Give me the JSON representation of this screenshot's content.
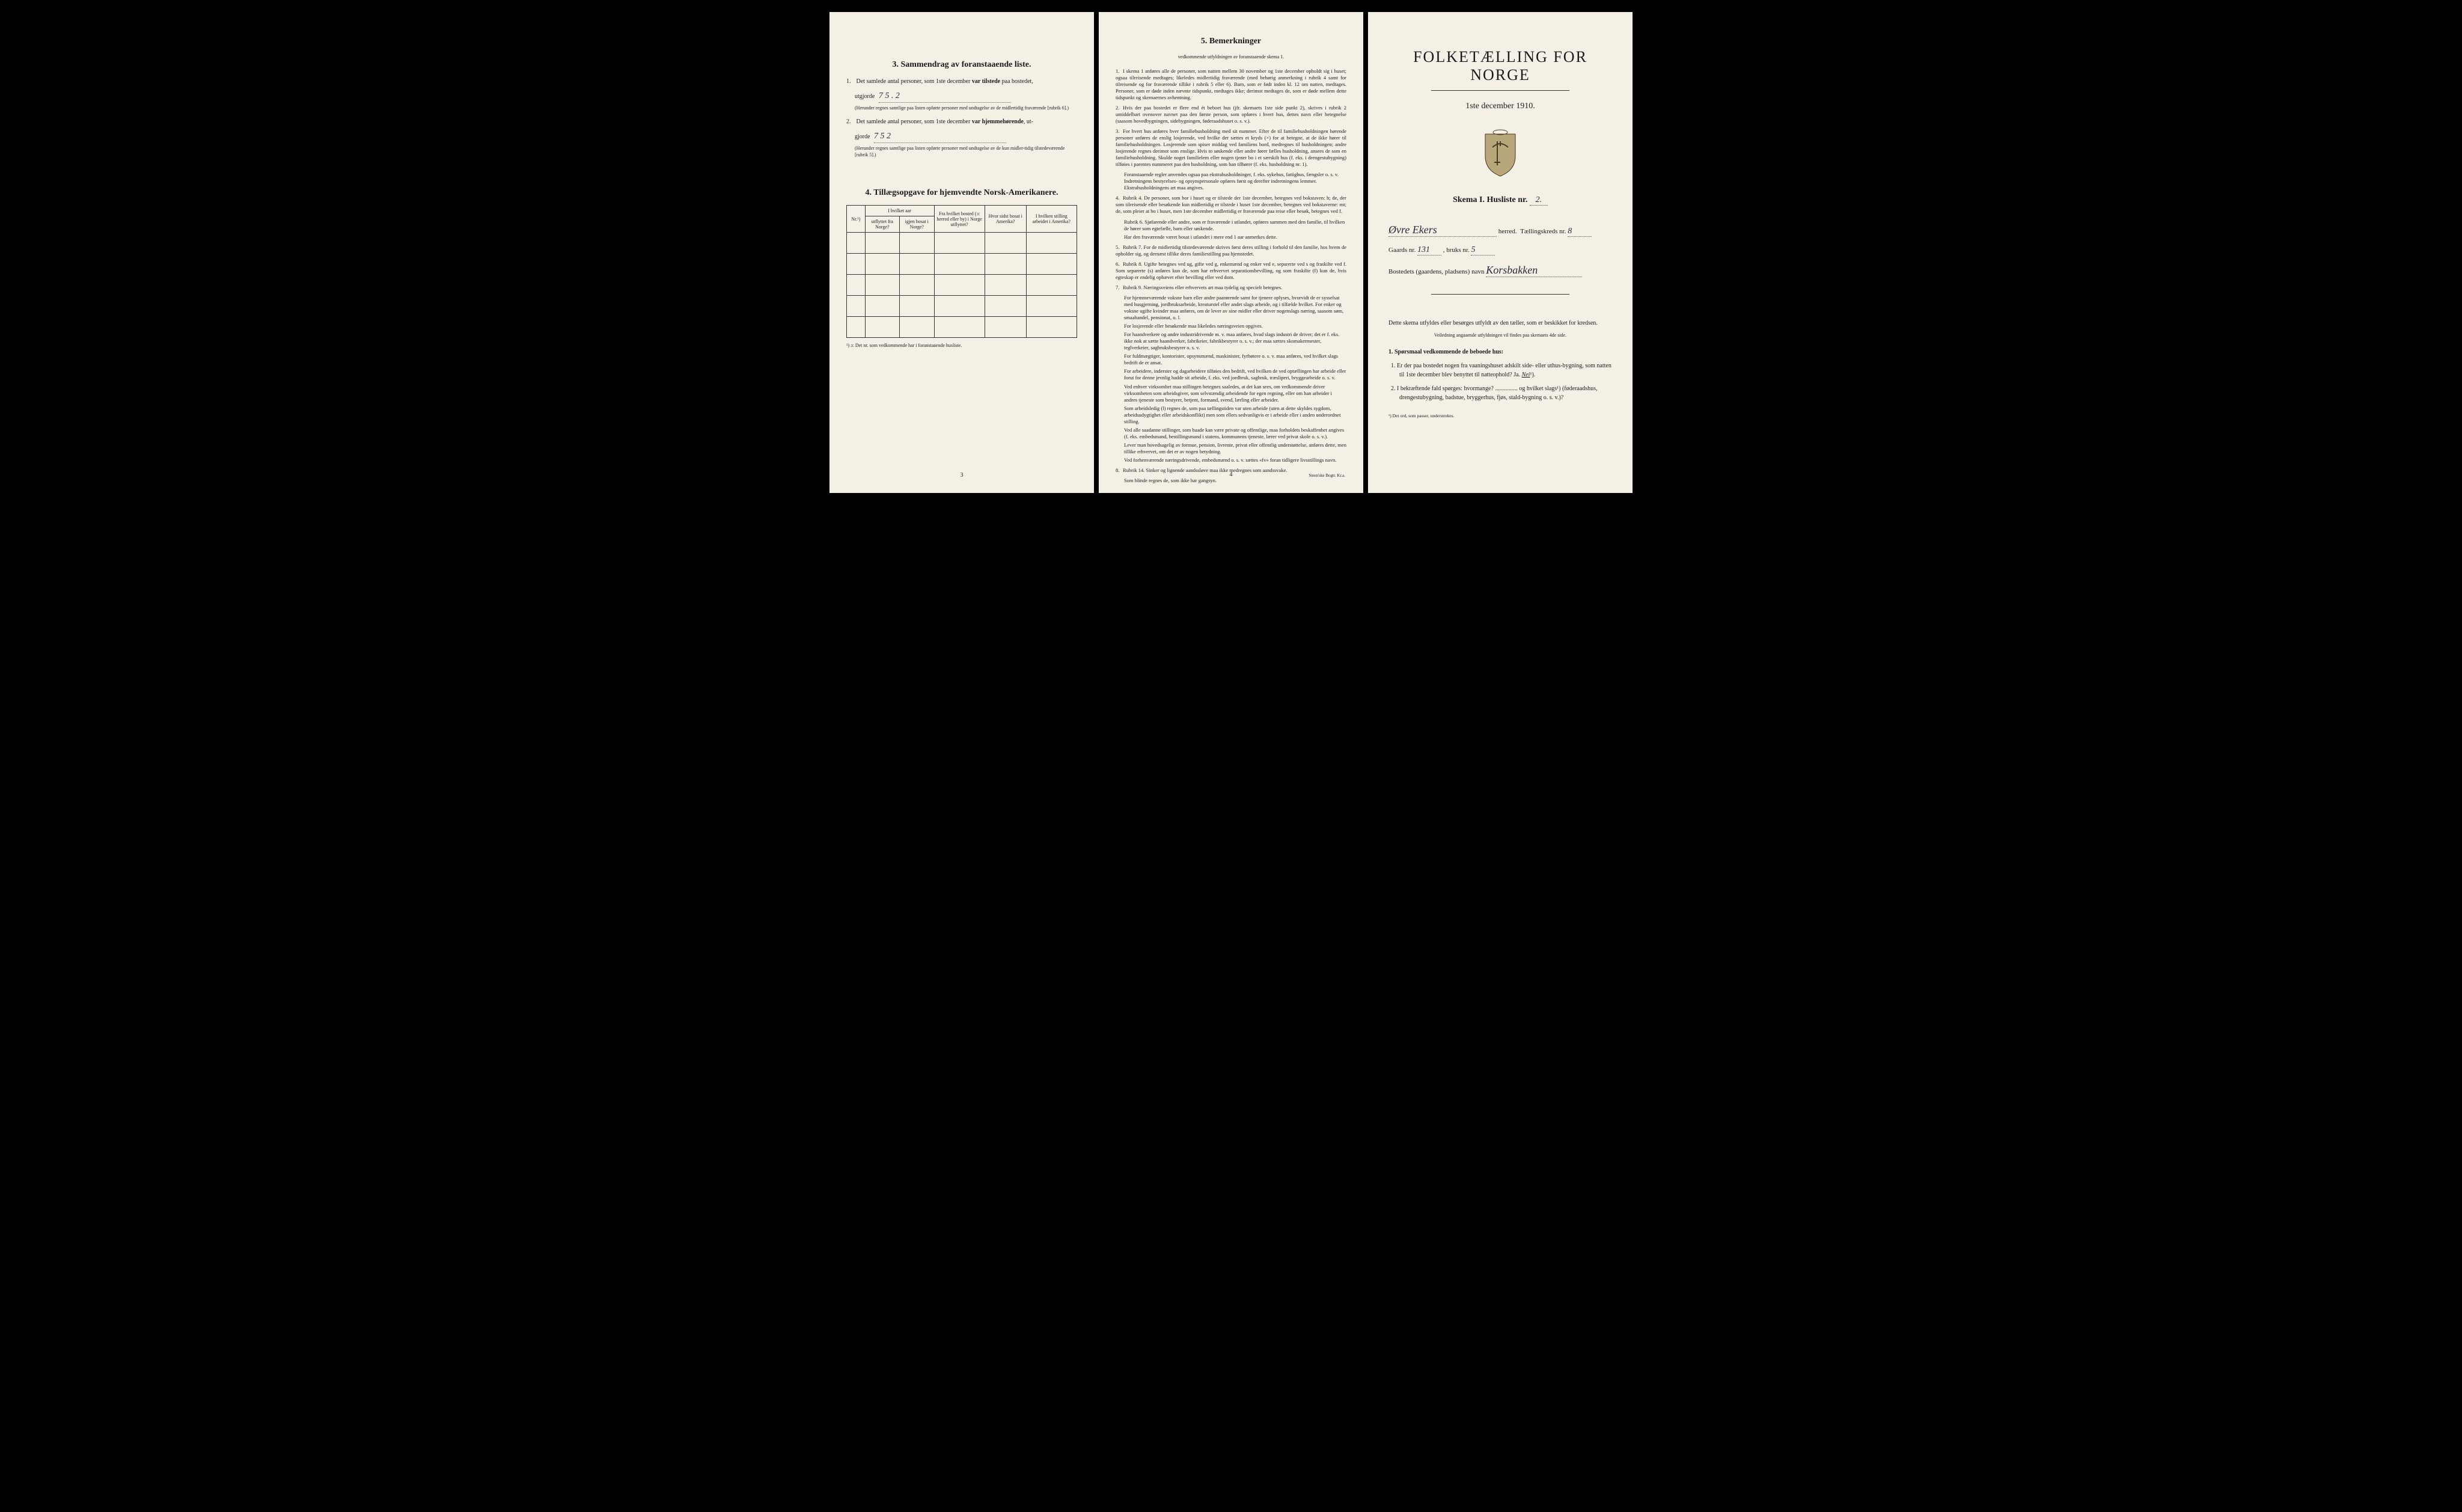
{
  "page1": {
    "section3_heading": "3.  Sammendrag av foranstaaende liste.",
    "item1_pre": "Det samlede antal personer, som 1ste december ",
    "item1_bold": "var tilstede",
    "item1_post": " paa bostedet,",
    "item1_utgjorde": "utgjorde",
    "item1_value": "7       5 . 2",
    "item1_note": "(Herunder regnes samtlige paa listen opførte personer med undtagelse av de midlertidig fraværende [rubrik 6].)",
    "item2_pre": "Det samlede antal personer, som 1ste december ",
    "item2_bold": "var hjemmehørende",
    "item2_post": ", ut-",
    "item2_gjorde": "gjorde",
    "item2_value": "7       5   2",
    "item2_note": "(Herunder regnes samtlige paa listen opførte personer med undtagelse av de kun midler-tidig tilstedeværende [rubrik 5].)",
    "section4_heading": "4.  Tillægsopgave for hjemvendte Norsk-Amerikanere.",
    "table": {
      "col_nr": "Nr.¹)",
      "col_hvilket_aar": "I hvilket aar",
      "col_utflyttet": "utflyttet fra Norge?",
      "col_igjen": "igjen bosat i Norge?",
      "col_fra_bosted": "Fra hvilket bosted (ɔ: herred eller by) i Norge utflyttet?",
      "col_hvor_sidst": "Hvor sidst bosat i Amerika?",
      "col_stilling": "I hvilken stilling arbeidet i Amerika?",
      "row_count": 5
    },
    "table_footnote": "¹) ɔ: Det nr. som vedkommende har i foranstaaende husliste.",
    "page_num": "3"
  },
  "page2": {
    "heading": "5.  Bemerkninger",
    "subheading": "vedkommende utfyldningen av foranstaaende skema 1.",
    "remarks": [
      {
        "num": "1.",
        "text": "I skema 1 anføres alle de personer, som natten mellem 30 november og 1ste december opholdt sig i huset; ogsaa tilreisende medtages; likeledes midlertidig fraværende (med behørig anmerkning i rubrik 4 samt for tilreisende og for fraværende tillike i rubrik 5 eller 6). Barn, som er født inden kl. 12 om natten, medtages. Personer, som er døde inden nævnte tidspunkt, medtages ikke; derimot medtages de, som er døde mellem dette tidspunkt og skemaernes avhentning."
      },
      {
        "num": "2.",
        "text": "Hvis der paa bostedet er flere end ét beboet hus (jfr. skemaets 1ste side punkt 2), skrives i rubrik 2 umiddelbart ovenover navnet paa den første person, som opføres i hvert hus, dettes navn eller betegnelse (saasom hovedbygningen, sidebygningen, føderaadshuset o. s. v.)."
      },
      {
        "num": "3.",
        "text": "For hvert hus anføres hver familiehusholdning med sit nummer. Efter de til familiehusholdningen hørende personer anføres de enslig losjerende, ved hvilke der sættes et kryds (×) for at betegne, at de ikke hører til familiehusholdningen. Losjerende som spiser middag ved familiens bord, medregnes til husholdningen; andre losjerende regnes derimot som enslige. Hvis to søskende eller andre fører fælles husholdning, ansees de som en familiehusholdning. Skulde noget familielem eller nogen tjener bo i et særskilt hus (f. eks. i drengestubygning) tilføies i parentes nummeret paa den husholdning, som han tilhører (f. eks. husholdning nr. 1).",
        "paras": [
          "Foranstaaende regler anvendes ogsaa paa ekstrahusholdninger, f. eks. sykehus, fattighus, fængsler o. s. v. Indretningens bestyrelses- og opsynspersonale opføres først og derefter indretningens lemmer. Ekstrahusholdningens art maa angives."
        ]
      },
      {
        "num": "4.",
        "text": "Rubrik 4. De personer, som bor i huset og er tilstede der 1ste december, betegnes ved bokstaven: b; de, der som tilreisende eller besøkende kun midlertidig er tilstede i huset 1ste december, betegnes ved bokstaverne: mt; de, som pleier at bo i huset, men 1ste december midlertidig er fraværende paa reise eller besøk, betegnes ved f.",
        "paras": [
          "Rubrik 6. Sjøfarende eller andre, som er fraværende i utlandet, opføres sammen med den familie, til hvilken de hører som egtefælle, barn eller søskende.",
          "Har den fraværende været bosat i utlandet i mere end 1 aar anmerkes dette."
        ]
      },
      {
        "num": "5.",
        "text": "Rubrik 7. For de midlertidig tilstedeværende skrives først deres stilling i forhold til den familie, hos hvem de opholder sig, og dernæst tillike deres familiestilling paa hjemstedet."
      },
      {
        "num": "6.",
        "text": "Rubrik 8. Ugifte betegnes ved ug, gifte ved g, enkemænd og enker ved e, separerte ved s og fraskilte ved f. Som separerte (s) anføres kun de, som har erhvervet separationsbevilling, og som fraskilte (f) kun de, hvis egteskap er endelig ophævet efter bevilling eller ved dom."
      },
      {
        "num": "7.",
        "text": "Rubrik 9. Næringsveiens eller erhvervets art maa tydelig og specielt betegnes.",
        "paras": [
          "For hjemmeværende voksne barn eller andre paarørende samt for tjenere oplyses, hvorvidt de er sysselsat med husgjerning, jordbruksarbeide, kreaturstel eller andet slags arbeide, og i tilfælde hvilket. For enker og voksne ugifte kvinder maa anføres, om de lever av sine midler eller driver nogenslags næring, saasom søm, smaahandel, pensionat, o. l.",
          "For losjerende eller besøkende maa likeledes næringsveien opgives.",
          "For haandverkere og andre industridrivende m. v. maa anføres, hvad slags industri de driver; det er f. eks. ikke nok at sætte haandverker, fabrikeier, fabrikbestyrer o. s. v.; der maa sættes skomakermester, teglverkeier, sagbruksbestyrer o. s. v.",
          "For fuldmægtiger, kontorister, opsynsmænd, maskinister, fyrbøtere o. s. v. maa anføres, ved hvilket slags bedrift de er ansat.",
          "For arbeidere, inderster og dagarbeidere tilføies den bedrift, ved hvilken de ved optællingen har arbeide eller forut for denne jevnlig hadde sit arbeide, f. eks. ved jordbruk, sagbruk, træsliperi, bryggearbeide o. s. v.",
          "Ved enhver virksomhet maa stillingen betegnes saaledes, at det kan sees, om vedkommende driver virksomheten som arbeidsgiver, som selvstændig arbeidende for egen regning, eller om han arbeider i andres tjeneste som bestyrer, betjent, formand, svend, lærling eller arbeider.",
          "Som arbeidsledig (l) regnes de, som paa tællingstiden var uten arbeide (uten at dette skyldes sygdom, arbeidsudygtighet eller arbeidskonflikt) men som ellers sedvanligvis er i arbeide eller i anden underordnet stilling.",
          "Ved alle saadanne stillinger, som baade kan være private og offentlige, maa forholdets beskaffenhet angives (f. eks. embedsmand, bestillingsmand i statens, kommunens tjeneste, lærer ved privat skole o. s. v.).",
          "Lever man hovedsagelig av formue, pension, livrente, privat eller offentlig understøttelse, anføres dette, men tillike erhvervet, om det er av nogen betydning.",
          "Ved forhenværende næringsdrivende, embedsmænd o. s. v. sættes «fv» foran tidligere livsstillings navn."
        ]
      },
      {
        "num": "8.",
        "text": "Rubrik 14. Sinker og lignende aandssløve maa ikke medregnes som aandssvake.",
        "paras": [
          "Som blinde regnes de, som ikke har gangsyn."
        ]
      }
    ],
    "page_num": "4",
    "printer": "Steen'ske Bogtr. Kr.a."
  },
  "page3": {
    "main_title": "FOLKETÆLLING FOR NORGE",
    "subtitle": "1ste december 1910.",
    "skema_label": "Skema I.   Husliste nr.",
    "husliste_nr": "2.",
    "herred_value": "Øvre Ekers",
    "herred_label": "herred.",
    "taellingskreds_label": "Tællingskreds nr.",
    "taellingskreds_nr": "8",
    "gaards_label": "Gaards nr.",
    "gaards_nr": "131",
    "bruks_label": ", bruks nr.",
    "bruks_nr": "5",
    "bosted_label": "Bostedets (gaardens, pladsens) navn",
    "bosted_value": "Korsbakken",
    "instruction_lead": "Dette skema utfyldes eller besørges utfyldt av den tæller, som er beskikket for kredsen.",
    "instruction_small": "Veiledning angaaende utfyldningen vil findes paa skemaets 4de side.",
    "q_heading": "1. Spørsmaal vedkommende de beboede hus:",
    "q1": "1. Er der paa bostedet nogen fra vaaningshuset adskilt side- eller uthus-bygning, som natten til 1ste december blev benyttet til natteophold?   Ja.   ",
    "q1_answer": "Nei",
    "q1_sup": "¹).",
    "q2": "2. I bekræftende fald spørges: hvormange? ............... og hvilket slags¹) (føderaadshus, drengestubygning, badstue, bryggerhus, fjøs, stald-bygning o. s. v.)?",
    "footnote": "¹) Det ord, som passer, understrekes."
  },
  "colors": {
    "paper": "#f5f0e6",
    "ink": "#1a1a1a",
    "handwriting": "#2a2a3a",
    "background": "#000000"
  }
}
